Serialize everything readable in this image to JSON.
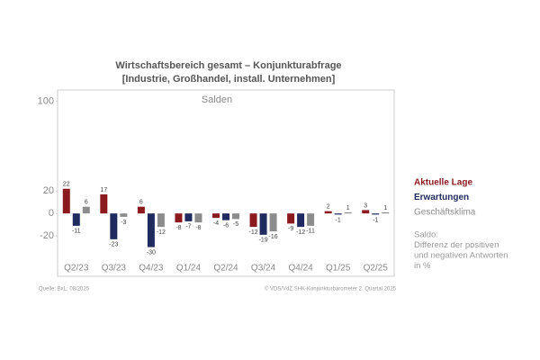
{
  "chart_data": {
    "type": "bar",
    "title": [
      "Wirtschaftsbereich gesamt – Konjunkturabfrage",
      "[Industrie, Großhandel, install. Unternehmen]"
    ],
    "plot_label": "Salden",
    "categories": [
      "Q2/23",
      "Q3/23",
      "Q4/23",
      "Q1/24",
      "Q2/24",
      "Q3/24",
      "Q4/24",
      "Q1/25",
      "Q2/25"
    ],
    "series": [
      {
        "name": "Aktuelle Lage",
        "color": "#8b1a1f",
        "values": [
          22,
          17,
          6,
          -8,
          -4,
          -12,
          -9,
          2,
          3
        ]
      },
      {
        "name": "Erwartungen",
        "color": "#1f2a5e",
        "values": [
          -11,
          -23,
          -30,
          -7,
          -6,
          -19,
          -12,
          -1,
          -1
        ]
      },
      {
        "name": "Geschäftsklima",
        "color": "#8c8c8c",
        "values": [
          6,
          -3,
          -12,
          -8,
          -5,
          -16,
          -11,
          1,
          1
        ]
      }
    ],
    "ylim": [
      -56,
      110
    ],
    "yticks": [
      -20,
      0,
      20,
      100
    ],
    "note": [
      "Saldo:",
      "Differenz der positiven",
      "und negativen Antworten",
      "in %"
    ],
    "source": "Quelle: BxL; 08/2025",
    "copyright": "© VDS/VdZ SHK-Konjunkturbarometer 2. Quartal 2025"
  }
}
